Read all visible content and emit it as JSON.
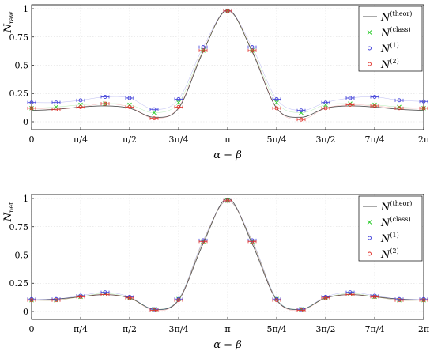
{
  "chart_data": [
    {
      "type": "scatter",
      "ylabel": "N_raw",
      "xlabel": "α − β",
      "xlim": [
        0,
        6.2832
      ],
      "ylim": [
        0,
        1
      ],
      "x_tick_labels": [
        "0",
        "π/4",
        "π/2",
        "3π/4",
        "π",
        "5π/4",
        "3π/2",
        "7π/4",
        "2π"
      ],
      "y_tick_labels": [
        "0",
        "0.25",
        "0.5",
        "0.75",
        "1"
      ],
      "y_ticks": [
        0,
        0.25,
        0.5,
        0.75,
        1
      ],
      "grid": true,
      "legend_position": "top-right",
      "legend": [
        {
          "label": "N(theor)",
          "base": "N",
          "sup": "(theor)",
          "marker": "line",
          "color": "#555555"
        },
        {
          "label": "N(class)",
          "base": "N",
          "sup": "(class)",
          "marker": "x",
          "color": "#2ecc2e"
        },
        {
          "label": "N(1)",
          "base": "N",
          "sup": "(1)",
          "marker": "o",
          "color": "#3a3ad8"
        },
        {
          "label": "N(2)",
          "base": "N",
          "sup": "(2)",
          "marker": "o",
          "color": "#e0302a"
        }
      ],
      "series": [
        {
          "name": "N(theor)",
          "x": [
            0,
            0.3927,
            0.7854,
            1.1781,
            1.5708,
            1.9635,
            2.3562,
            2.7489,
            3.1416,
            3.5343,
            3.927,
            4.3197,
            4.7124,
            5.1051,
            5.4978,
            5.8905,
            6.2832
          ],
          "y": [
            0.1,
            0.11,
            0.13,
            0.14,
            0.12,
            0.04,
            0.12,
            0.62,
            0.99,
            0.62,
            0.12,
            0.04,
            0.12,
            0.14,
            0.13,
            0.11,
            0.1
          ]
        },
        {
          "name": "N(class)",
          "x": [
            0,
            0.3927,
            0.7854,
            1.1781,
            1.5708,
            1.9635,
            2.3562,
            2.7489,
            3.1416,
            3.5343,
            3.927,
            4.3197,
            4.7124,
            5.1051,
            5.4978,
            5.8905,
            6.2832
          ],
          "y": [
            0.12,
            0.13,
            0.15,
            0.16,
            0.15,
            0.08,
            0.17,
            0.63,
            0.98,
            0.63,
            0.17,
            0.08,
            0.15,
            0.16,
            0.15,
            0.13,
            0.12
          ]
        },
        {
          "name": "N(1)",
          "x": [
            0,
            0.3927,
            0.7854,
            1.1781,
            1.5708,
            1.9635,
            2.3562,
            2.7489,
            3.1416,
            3.5343,
            3.927,
            4.3197,
            4.7124,
            5.1051,
            5.4978,
            5.8905,
            6.2832
          ],
          "y": [
            0.17,
            0.17,
            0.19,
            0.22,
            0.21,
            0.11,
            0.2,
            0.66,
            0.98,
            0.66,
            0.2,
            0.1,
            0.17,
            0.21,
            0.22,
            0.19,
            0.18
          ]
        },
        {
          "name": "N(2)",
          "x": [
            0,
            0.3927,
            0.7854,
            1.1781,
            1.5708,
            1.9635,
            2.3562,
            2.7489,
            3.1416,
            3.5343,
            3.927,
            4.3197,
            4.7124,
            5.1051,
            5.4978,
            5.8905,
            6.2832
          ],
          "y": [
            0.12,
            0.11,
            0.13,
            0.16,
            0.13,
            0.03,
            0.13,
            0.63,
            0.98,
            0.63,
            0.12,
            0.02,
            0.12,
            0.15,
            0.14,
            0.12,
            0.12
          ]
        }
      ]
    },
    {
      "type": "scatter",
      "ylabel": "N_net",
      "xlabel": "α − β",
      "xlim": [
        0,
        6.2832
      ],
      "ylim": [
        0,
        1
      ],
      "x_tick_labels": [
        "0",
        "π/4",
        "π/2",
        "3π/4",
        "π",
        "5π/4",
        "3π/2",
        "7π/4",
        "2π"
      ],
      "y_tick_labels": [
        "0",
        "0.25",
        "0.5",
        "0.75",
        "1"
      ],
      "y_ticks": [
        0,
        0.25,
        0.5,
        0.75,
        1
      ],
      "grid": true,
      "legend_position": "top-right",
      "legend": [
        {
          "label": "N(theor)",
          "base": "N",
          "sup": "(theor)",
          "marker": "line",
          "color": "#555555"
        },
        {
          "label": "N(class)",
          "base": "N",
          "sup": "(class)",
          "marker": "x",
          "color": "#2ecc2e"
        },
        {
          "label": "N(1)",
          "base": "N",
          "sup": "(1)",
          "marker": "o",
          "color": "#3a3ad8"
        },
        {
          "label": "N(2)",
          "base": "N",
          "sup": "(2)",
          "marker": "o",
          "color": "#e0302a"
        }
      ],
      "series": [
        {
          "name": "N(theor)",
          "x": [
            0,
            0.3927,
            0.7854,
            1.1781,
            1.5708,
            1.9635,
            2.3562,
            2.7489,
            3.1416,
            3.5343,
            3.927,
            4.3197,
            4.7124,
            5.1051,
            5.4978,
            5.8905,
            6.2832
          ],
          "y": [
            0.1,
            0.11,
            0.13,
            0.15,
            0.12,
            0.02,
            0.1,
            0.6,
            1.0,
            0.6,
            0.1,
            0.02,
            0.12,
            0.15,
            0.13,
            0.11,
            0.1
          ]
        },
        {
          "name": "N(class)",
          "x": [
            0,
            0.3927,
            0.7854,
            1.1781,
            1.5708,
            1.9635,
            2.3562,
            2.7489,
            3.1416,
            3.5343,
            3.927,
            4.3197,
            4.7124,
            5.1051,
            5.4978,
            5.8905,
            6.2832
          ],
          "y": [
            0.1,
            0.1,
            0.13,
            0.16,
            0.12,
            0.02,
            0.11,
            0.62,
            0.98,
            0.62,
            0.11,
            0.02,
            0.12,
            0.16,
            0.13,
            0.1,
            0.1
          ]
        },
        {
          "name": "N(1)",
          "x": [
            0,
            0.3927,
            0.7854,
            1.1781,
            1.5708,
            1.9635,
            2.3562,
            2.7489,
            3.1416,
            3.5343,
            3.927,
            4.3197,
            4.7124,
            5.1051,
            5.4978,
            5.8905,
            6.2832
          ],
          "y": [
            0.11,
            0.11,
            0.14,
            0.17,
            0.13,
            0.02,
            0.11,
            0.63,
            0.98,
            0.63,
            0.11,
            0.02,
            0.13,
            0.17,
            0.14,
            0.11,
            0.11
          ]
        },
        {
          "name": "N(2)",
          "x": [
            0,
            0.3927,
            0.7854,
            1.1781,
            1.5708,
            1.9635,
            2.3562,
            2.7489,
            3.1416,
            3.5343,
            3.927,
            4.3197,
            4.7124,
            5.1051,
            5.4978,
            5.8905,
            6.2832
          ],
          "y": [
            0.1,
            0.1,
            0.13,
            0.15,
            0.12,
            0.01,
            0.1,
            0.62,
            0.98,
            0.62,
            0.1,
            0.01,
            0.12,
            0.15,
            0.13,
            0.1,
            0.1
          ]
        }
      ]
    }
  ]
}
